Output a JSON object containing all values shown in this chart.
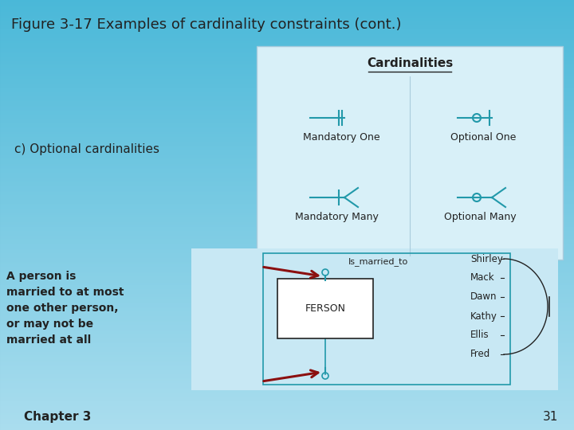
{
  "title": "Figure 3-17 Examples of cardinality constraints (cont.)",
  "bg_top": "#4AB8D8",
  "bg_bottom": "#8FD8EE",
  "card_box_bg": "#D8F0F8",
  "diagram_box_bg": "#C8E8F4",
  "teal": "#2299AA",
  "dark_text": "#222222",
  "red_arrow": "#8B1010",
  "chapter_text": "Chapter 3",
  "page_num": "31",
  "optional_label": "c) Optional cardinalities",
  "left_text_lines": [
    "A person is",
    "married to at most",
    "one other person,",
    "or may not be",
    "married at all"
  ],
  "card_title": "Cardinalities",
  "names": [
    "Shirley",
    "Mack",
    "Dawn",
    "Kathy",
    "Ellis",
    "Fred"
  ],
  "relation_label": "Is_married_to",
  "entity_label": "FERSON"
}
